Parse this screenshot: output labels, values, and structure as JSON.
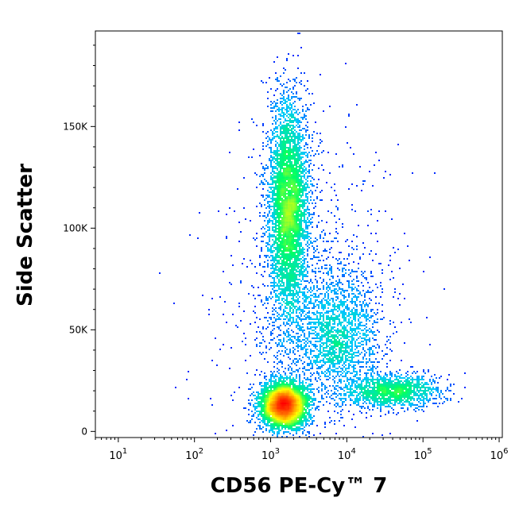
{
  "chart_data": {
    "type": "scatter",
    "style": "density-dot-plot",
    "xlabel": "CD56 PE-Cy™ 7",
    "ylabel": "Side Scatter",
    "x_scale": "log",
    "xlim": [
      5,
      1100000
    ],
    "ylim": [
      -3000,
      197000
    ],
    "x_ticks": [
      {
        "value": 10,
        "base": "10",
        "exp": "1"
      },
      {
        "value": 100,
        "base": "10",
        "exp": "2"
      },
      {
        "value": 1000,
        "base": "10",
        "exp": "3"
      },
      {
        "value": 10000,
        "base": "10",
        "exp": "4"
      },
      {
        "value": 100000,
        "base": "10",
        "exp": "5"
      },
      {
        "value": 1000000,
        "base": "10",
        "exp": "6"
      }
    ],
    "y_ticks": [
      {
        "value": 0,
        "label": "0"
      },
      {
        "value": 50000,
        "label": "50K"
      },
      {
        "value": 100000,
        "label": "100K"
      },
      {
        "value": 150000,
        "label": "150K"
      }
    ],
    "populations": [
      {
        "x_center": 1500,
        "x_spread_decades": 0.15,
        "y_center": 13000,
        "y_spread": 5500,
        "weight": 0.32
      },
      {
        "x_center": 1700,
        "x_spread_decades": 0.13,
        "y_center": 110000,
        "y_spread": 27000,
        "weight": 0.36
      },
      {
        "x_center": 8000,
        "x_spread_decades": 0.25,
        "y_center": 47000,
        "y_spread": 15000,
        "weight": 0.12
      },
      {
        "x_center": 40000,
        "x_spread_decades": 0.32,
        "y_center": 20000,
        "y_spread": 4000,
        "weight": 0.1
      },
      {
        "x_center": 3000,
        "x_spread_decades": 0.55,
        "y_center": 60000,
        "y_spread": 40000,
        "weight": 0.1
      }
    ],
    "event_count": 14000,
    "grid": false,
    "colormap": [
      "#0000ff",
      "#00c8ff",
      "#00ff64",
      "#ffff00",
      "#ff8000",
      "#ff0000"
    ]
  }
}
